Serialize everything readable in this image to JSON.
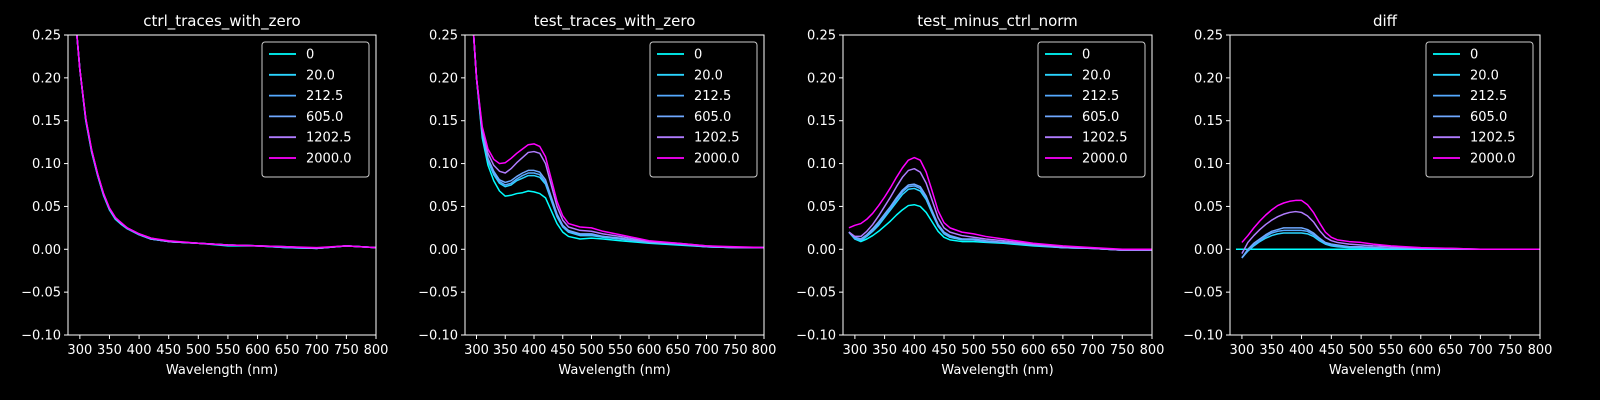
{
  "figure": {
    "background": "#000000",
    "foreground": "#ffffff"
  },
  "chart_data": [
    {
      "type": "line",
      "title": "ctrl_traces_with_zero",
      "xlabel": "Wavelength (nm)",
      "ylabel": "",
      "xlim": [
        280,
        800
      ],
      "ylim": [
        -0.1,
        0.25
      ],
      "xticks": [
        "300",
        "350",
        "400",
        "450",
        "500",
        "550",
        "600",
        "650",
        "700",
        "750",
        "800"
      ],
      "yticks": [
        "−0.10",
        "−0.05",
        "0.00",
        "0.05",
        "0.10",
        "0.15",
        "0.20",
        "0.25"
      ],
      "legend_position": "upper-right",
      "x": [
        295,
        300,
        310,
        320,
        330,
        340,
        350,
        360,
        370,
        380,
        400,
        420,
        450,
        500,
        550,
        600,
        650,
        700,
        750,
        800
      ],
      "series": [
        {
          "name": "0",
          "color": "#00ffff",
          "values": [
            0.25,
            0.21,
            0.15,
            0.113,
            0.086,
            0.063,
            0.046,
            0.035,
            0.029,
            0.024,
            0.017,
            0.012,
            0.009,
            0.007,
            0.004,
            0.004,
            0.002,
            0.001,
            0.004,
            0.002
          ]
        },
        {
          "name": "20.0",
          "color": "#2ad5ff",
          "values": [
            0.25,
            0.21,
            0.151,
            0.114,
            0.086,
            0.063,
            0.046,
            0.036,
            0.029,
            0.024,
            0.017,
            0.012,
            0.009,
            0.007,
            0.005,
            0.004,
            0.002,
            0.001,
            0.004,
            0.002
          ]
        },
        {
          "name": "212.5",
          "color": "#55aaff",
          "values": [
            0.25,
            0.21,
            0.151,
            0.114,
            0.087,
            0.064,
            0.047,
            0.036,
            0.03,
            0.024,
            0.017,
            0.012,
            0.009,
            0.007,
            0.005,
            0.004,
            0.002,
            0.001,
            0.004,
            0.002
          ]
        },
        {
          "name": "605.0",
          "color": "#6fa8ff",
          "values": [
            0.25,
            0.21,
            0.152,
            0.115,
            0.087,
            0.064,
            0.047,
            0.036,
            0.03,
            0.025,
            0.018,
            0.012,
            0.009,
            0.007,
            0.005,
            0.004,
            0.003,
            0.001,
            0.004,
            0.002
          ]
        },
        {
          "name": "1202.5",
          "color": "#b07cff",
          "values": [
            0.25,
            0.21,
            0.152,
            0.115,
            0.088,
            0.065,
            0.048,
            0.037,
            0.03,
            0.025,
            0.018,
            0.013,
            0.009,
            0.007,
            0.005,
            0.004,
            0.003,
            0.001,
            0.004,
            0.002
          ]
        },
        {
          "name": "2000.0",
          "color": "#ff00ff",
          "values": [
            0.25,
            0.21,
            0.153,
            0.116,
            0.088,
            0.065,
            0.048,
            0.037,
            0.031,
            0.025,
            0.018,
            0.013,
            0.01,
            0.007,
            0.005,
            0.004,
            0.003,
            0.002,
            0.004,
            0.002
          ]
        }
      ]
    },
    {
      "type": "line",
      "title": "test_traces_with_zero",
      "xlabel": "Wavelength (nm)",
      "ylabel": "",
      "xlim": [
        280,
        800
      ],
      "ylim": [
        -0.1,
        0.25
      ],
      "xticks": [
        "300",
        "350",
        "400",
        "450",
        "500",
        "550",
        "600",
        "650",
        "700",
        "750",
        "800"
      ],
      "yticks": [
        "−0.10",
        "−0.05",
        "0.00",
        "0.05",
        "0.10",
        "0.15",
        "0.20",
        "0.25"
      ],
      "legend_position": "upper-right",
      "x": [
        295,
        300,
        310,
        320,
        330,
        340,
        350,
        360,
        370,
        380,
        390,
        400,
        410,
        420,
        430,
        440,
        450,
        460,
        480,
        500,
        520,
        550,
        600,
        650,
        700,
        750,
        800
      ],
      "series": [
        {
          "name": "0",
          "color": "#00ffff",
          "values": [
            0.25,
            0.2,
            0.13,
            0.098,
            0.08,
            0.068,
            0.062,
            0.063,
            0.065,
            0.066,
            0.068,
            0.067,
            0.065,
            0.06,
            0.045,
            0.03,
            0.02,
            0.015,
            0.012,
            0.013,
            0.012,
            0.01,
            0.007,
            0.005,
            0.003,
            0.002,
            0.002
          ]
        },
        {
          "name": "20.0",
          "color": "#2ad5ff",
          "values": [
            0.25,
            0.2,
            0.134,
            0.103,
            0.087,
            0.077,
            0.073,
            0.075,
            0.08,
            0.083,
            0.086,
            0.086,
            0.084,
            0.076,
            0.057,
            0.038,
            0.026,
            0.02,
            0.016,
            0.016,
            0.014,
            0.012,
            0.008,
            0.006,
            0.003,
            0.002,
            0.002
          ]
        },
        {
          "name": "212.5",
          "color": "#55aaff",
          "values": [
            0.25,
            0.2,
            0.135,
            0.104,
            0.089,
            0.079,
            0.075,
            0.077,
            0.082,
            0.086,
            0.089,
            0.089,
            0.087,
            0.078,
            0.059,
            0.039,
            0.027,
            0.021,
            0.017,
            0.017,
            0.015,
            0.012,
            0.008,
            0.006,
            0.003,
            0.002,
            0.002
          ]
        },
        {
          "name": "605.0",
          "color": "#6fa8ff",
          "values": [
            0.25,
            0.2,
            0.136,
            0.106,
            0.091,
            0.081,
            0.078,
            0.08,
            0.085,
            0.089,
            0.092,
            0.092,
            0.09,
            0.081,
            0.061,
            0.041,
            0.028,
            0.022,
            0.018,
            0.018,
            0.015,
            0.013,
            0.008,
            0.006,
            0.003,
            0.002,
            0.002
          ]
        },
        {
          "name": "1202.5",
          "color": "#b07cff",
          "values": [
            0.25,
            0.2,
            0.14,
            0.112,
            0.098,
            0.091,
            0.089,
            0.094,
            0.101,
            0.107,
            0.113,
            0.114,
            0.112,
            0.1,
            0.075,
            0.05,
            0.034,
            0.026,
            0.022,
            0.021,
            0.018,
            0.015,
            0.009,
            0.007,
            0.004,
            0.002,
            0.002
          ]
        },
        {
          "name": "2000.0",
          "color": "#ff00ff",
          "values": [
            0.25,
            0.2,
            0.143,
            0.117,
            0.105,
            0.1,
            0.101,
            0.106,
            0.112,
            0.117,
            0.122,
            0.123,
            0.12,
            0.108,
            0.082,
            0.056,
            0.039,
            0.03,
            0.026,
            0.025,
            0.021,
            0.017,
            0.01,
            0.007,
            0.004,
            0.003,
            0.002
          ]
        }
      ]
    },
    {
      "type": "line",
      "title": "test_minus_ctrl_norm",
      "xlabel": "Wavelength (nm)",
      "ylabel": "",
      "xlim": [
        280,
        800
      ],
      "ylim": [
        -0.1,
        0.25
      ],
      "xticks": [
        "300",
        "350",
        "400",
        "450",
        "500",
        "550",
        "600",
        "650",
        "700",
        "750",
        "800"
      ],
      "yticks": [
        "−0.10",
        "−0.05",
        "0.00",
        "0.05",
        "0.10",
        "0.15",
        "0.20",
        "0.25"
      ],
      "legend_position": "upper-right",
      "x": [
        290,
        300,
        310,
        320,
        330,
        340,
        350,
        360,
        370,
        380,
        390,
        400,
        410,
        420,
        430,
        440,
        450,
        460,
        480,
        500,
        520,
        550,
        600,
        650,
        700,
        750,
        800
      ],
      "series": [
        {
          "name": "0",
          "color": "#00ffff",
          "values": [
            0.02,
            0.012,
            0.009,
            0.012,
            0.016,
            0.021,
            0.027,
            0.033,
            0.04,
            0.046,
            0.051,
            0.052,
            0.05,
            0.043,
            0.032,
            0.021,
            0.014,
            0.011,
            0.009,
            0.009,
            0.008,
            0.007,
            0.004,
            0.002,
            0.001,
            -0.001,
            -0.001
          ]
        },
        {
          "name": "20.0",
          "color": "#2ad5ff",
          "values": [
            0.02,
            0.012,
            0.01,
            0.015,
            0.021,
            0.028,
            0.037,
            0.046,
            0.055,
            0.064,
            0.07,
            0.071,
            0.068,
            0.058,
            0.042,
            0.027,
            0.018,
            0.014,
            0.011,
            0.011,
            0.009,
            0.008,
            0.005,
            0.002,
            0.001,
            -0.001,
            -0.001
          ]
        },
        {
          "name": "212.5",
          "color": "#55aaff",
          "values": [
            0.02,
            0.013,
            0.011,
            0.016,
            0.022,
            0.03,
            0.039,
            0.048,
            0.058,
            0.067,
            0.073,
            0.074,
            0.071,
            0.06,
            0.044,
            0.028,
            0.019,
            0.015,
            0.012,
            0.011,
            0.009,
            0.008,
            0.005,
            0.002,
            0.001,
            -0.001,
            -0.001
          ]
        },
        {
          "name": "605.0",
          "color": "#6fa8ff",
          "values": [
            0.02,
            0.014,
            0.012,
            0.017,
            0.024,
            0.032,
            0.041,
            0.05,
            0.06,
            0.069,
            0.075,
            0.076,
            0.073,
            0.062,
            0.045,
            0.029,
            0.02,
            0.016,
            0.012,
            0.012,
            0.01,
            0.008,
            0.005,
            0.002,
            0.001,
            -0.001,
            -0.001
          ]
        },
        {
          "name": "1202.5",
          "color": "#b07cff",
          "values": [
            0.02,
            0.015,
            0.015,
            0.021,
            0.029,
            0.039,
            0.05,
            0.061,
            0.073,
            0.084,
            0.092,
            0.094,
            0.09,
            0.077,
            0.057,
            0.037,
            0.025,
            0.02,
            0.016,
            0.014,
            0.012,
            0.01,
            0.006,
            0.003,
            0.001,
            -0.001,
            -0.001
          ]
        },
        {
          "name": "2000.0",
          "color": "#ff00ff",
          "values": [
            0.025,
            0.028,
            0.03,
            0.035,
            0.042,
            0.051,
            0.061,
            0.072,
            0.084,
            0.095,
            0.104,
            0.107,
            0.104,
            0.09,
            0.068,
            0.045,
            0.031,
            0.025,
            0.02,
            0.018,
            0.015,
            0.012,
            0.007,
            0.004,
            0.002,
            0,
            0
          ]
        }
      ]
    },
    {
      "type": "line",
      "title": "diff",
      "xlabel": "Wavelength (nm)",
      "ylabel": "",
      "xlim": [
        280,
        800
      ],
      "ylim": [
        -0.1,
        0.25
      ],
      "xticks": [
        "300",
        "350",
        "400",
        "450",
        "500",
        "550",
        "600",
        "650",
        "700",
        "750",
        "800"
      ],
      "yticks": [
        "−0.10",
        "−0.05",
        "0.00",
        "0.05",
        "0.10",
        "0.15",
        "0.20",
        "0.25"
      ],
      "legend_position": "upper-right",
      "x": [
        290,
        300,
        310,
        320,
        330,
        340,
        350,
        360,
        370,
        380,
        390,
        400,
        410,
        420,
        430,
        440,
        450,
        460,
        480,
        500,
        520,
        550,
        600,
        650,
        700,
        750,
        800
      ],
      "series": [
        {
          "name": "0",
          "color": "#00ffff",
          "values": [
            0,
            0,
            0,
            0,
            0,
            0,
            0,
            0,
            0,
            0,
            0,
            0,
            0,
            0,
            0,
            0,
            0,
            0,
            0,
            0,
            0,
            0,
            0,
            0,
            0,
            0,
            0
          ]
        },
        {
          "name": "20.0",
          "color": "#2ad5ff",
          "values": [
            null,
            -0.01,
            -0.002,
            0.004,
            0.009,
            0.013,
            0.016,
            0.018,
            0.019,
            0.019,
            0.019,
            0.019,
            0.018,
            0.015,
            0.01,
            0.006,
            0.004,
            0.003,
            0.002,
            0.002,
            0.002,
            0.001,
            0.001,
            0,
            0,
            0,
            0
          ]
        },
        {
          "name": "212.5",
          "color": "#55aaff",
          "values": [
            null,
            -0.01,
            -0.001,
            0.005,
            0.01,
            0.015,
            0.019,
            0.021,
            0.022,
            0.022,
            0.022,
            0.022,
            0.021,
            0.017,
            0.012,
            0.007,
            0.005,
            0.004,
            0.003,
            0.002,
            0.002,
            0.001,
            0.001,
            0,
            0,
            0,
            0
          ]
        },
        {
          "name": "605.0",
          "color": "#6fa8ff",
          "values": [
            null,
            -0.01,
            0,
            0.007,
            0.012,
            0.017,
            0.021,
            0.023,
            0.025,
            0.025,
            0.025,
            0.025,
            0.023,
            0.019,
            0.013,
            0.008,
            0.006,
            0.005,
            0.003,
            0.003,
            0.002,
            0.001,
            0.001,
            0,
            0,
            0,
            0
          ]
        },
        {
          "name": "1202.5",
          "color": "#b07cff",
          "values": [
            null,
            -0.005,
            0.008,
            0.016,
            0.023,
            0.029,
            0.034,
            0.038,
            0.041,
            0.043,
            0.044,
            0.043,
            0.039,
            0.032,
            0.022,
            0.014,
            0.01,
            0.008,
            0.006,
            0.005,
            0.004,
            0.003,
            0.001,
            0.001,
            0,
            0,
            0
          ]
        },
        {
          "name": "2000.0",
          "color": "#ff00ff",
          "values": [
            null,
            0.008,
            0.016,
            0.025,
            0.033,
            0.04,
            0.046,
            0.051,
            0.054,
            0.056,
            0.057,
            0.057,
            0.052,
            0.043,
            0.031,
            0.02,
            0.014,
            0.011,
            0.009,
            0.008,
            0.006,
            0.004,
            0.002,
            0.001,
            0,
            0,
            0
          ]
        }
      ]
    }
  ]
}
